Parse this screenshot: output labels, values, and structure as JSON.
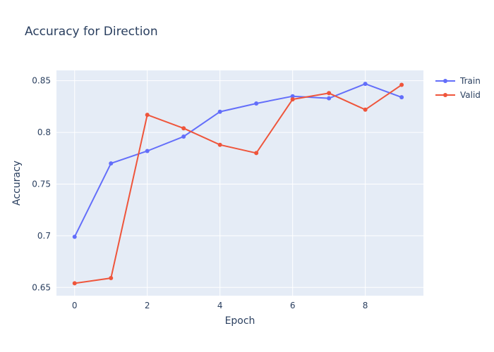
{
  "chart_data": {
    "type": "line",
    "title": "Accuracy for Direction",
    "xlabel": "Epoch",
    "ylabel": "Accuracy",
    "x": [
      0,
      1,
      2,
      3,
      4,
      5,
      6,
      7,
      8,
      9
    ],
    "xlim": [
      -0.5,
      9.6
    ],
    "ylim": [
      0.642,
      0.86
    ],
    "xticks": [
      0,
      2,
      4,
      6,
      8
    ],
    "xtick_labels": [
      "0",
      "2",
      "4",
      "6",
      "8"
    ],
    "yticks": [
      0.65,
      0.7,
      0.75,
      0.8,
      0.85
    ],
    "ytick_labels": [
      "0.65",
      "0.7",
      "0.75",
      "0.8",
      "0.85"
    ],
    "grid": true,
    "legend_position": "top-right",
    "series": [
      {
        "name": "Train",
        "color": "#636efa",
        "values": [
          0.699,
          0.77,
          0.782,
          0.796,
          0.82,
          0.828,
          0.835,
          0.833,
          0.847,
          0.834
        ]
      },
      {
        "name": "Valid",
        "color": "#ef553b",
        "values": [
          0.654,
          0.659,
          0.817,
          0.804,
          0.788,
          0.78,
          0.832,
          0.838,
          0.822,
          0.846
        ]
      }
    ]
  }
}
